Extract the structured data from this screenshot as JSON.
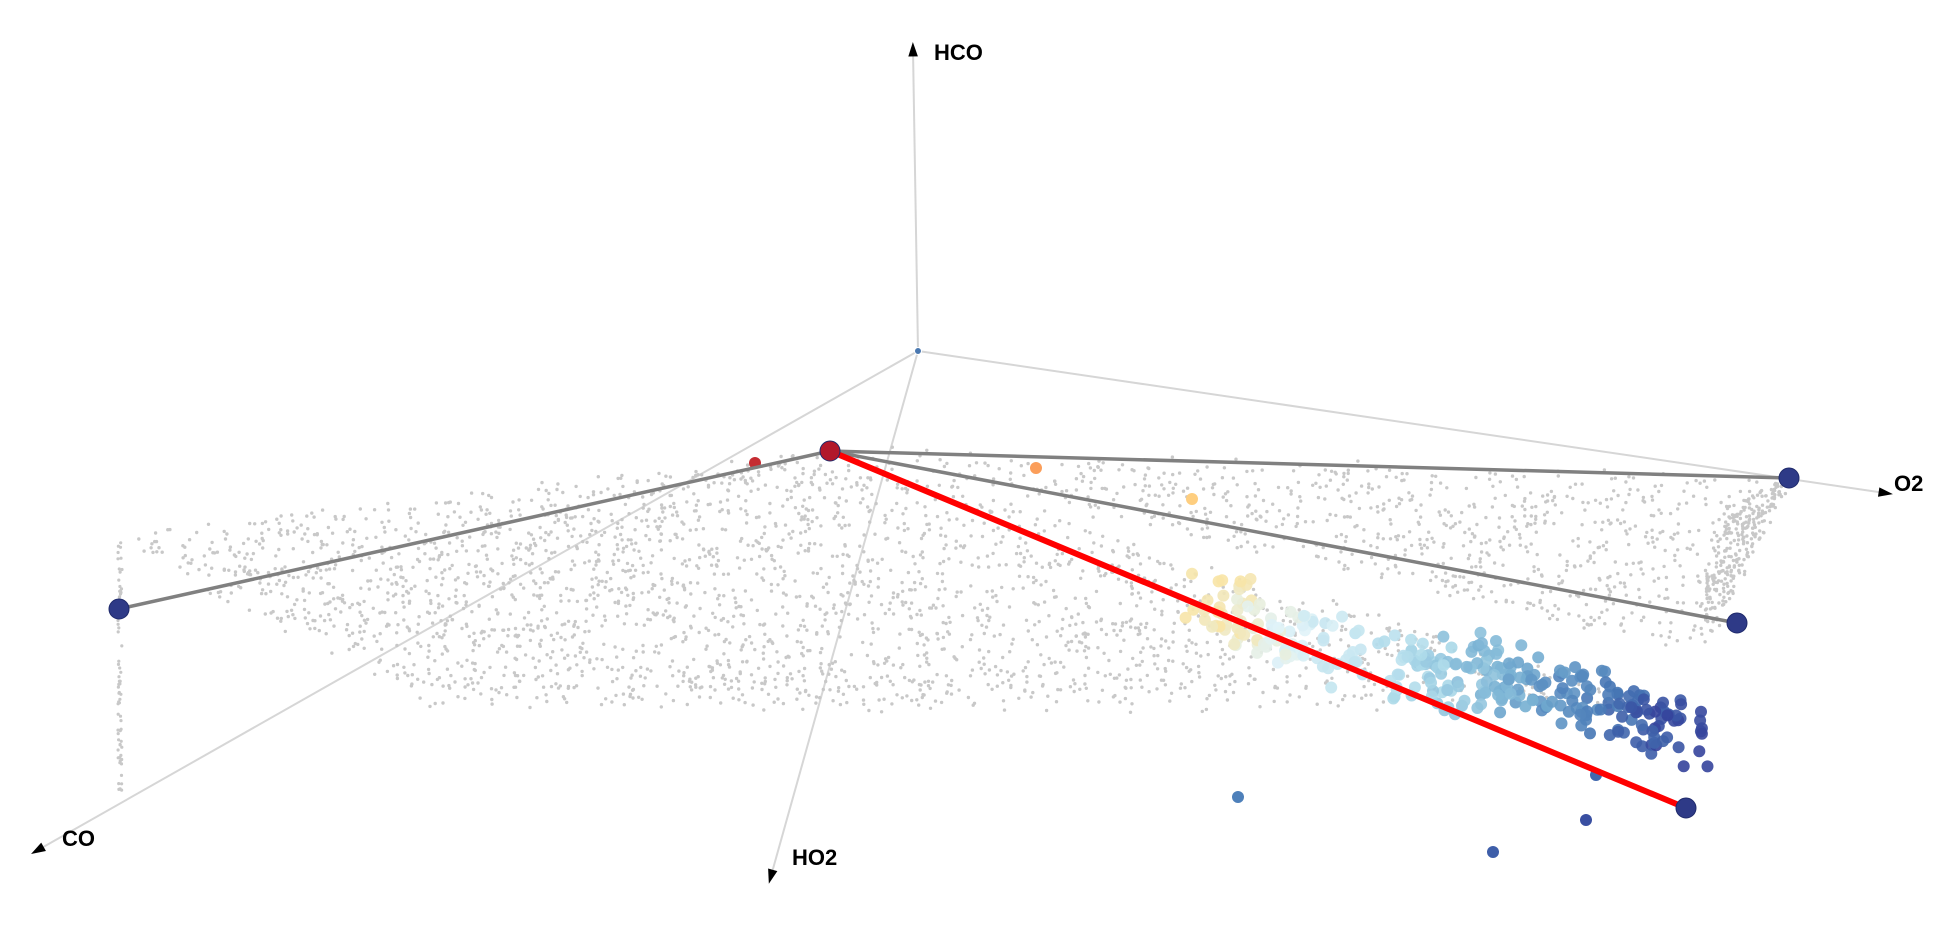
{
  "chart_data": {
    "type": "scatter",
    "projection": "3d",
    "grid": false,
    "legend": "none",
    "axes": {
      "x": {
        "label": "CO"
      },
      "y": {
        "label": "O2"
      },
      "z": {
        "label": "HCO"
      },
      "w": {
        "label": "HO2"
      }
    },
    "colors": {
      "axis_line": "#d6d6d6",
      "background_points": "#c8c8c8",
      "vertex": "#2e3a87",
      "vertex_highlight": "#b2182b",
      "edges": "#808080",
      "highlight_edge": "#ff0000",
      "colorscale": [
        "#a50026",
        "#f46d43",
        "#fdae61",
        "#fee090",
        "#e0f3f8",
        "#abd9e9",
        "#74add1",
        "#4575b4",
        "#313695"
      ]
    },
    "colorscale_name": "RdYlBu",
    "vertex_nodes": [
      {
        "id": "v0",
        "color": "vertex_highlight"
      },
      {
        "id": "v1",
        "color": "vertex"
      },
      {
        "id": "v2",
        "color": "vertex"
      },
      {
        "id": "v3",
        "color": "vertex"
      },
      {
        "id": "v4",
        "color": "vertex"
      }
    ],
    "edges": [
      {
        "from": "v0",
        "to": "v1",
        "color": "edges"
      },
      {
        "from": "v0",
        "to": "v2",
        "color": "edges"
      },
      {
        "from": "v0",
        "to": "v3",
        "color": "edges"
      },
      {
        "from": "v0",
        "to": "v4",
        "color": "highlight_edge"
      }
    ]
  }
}
